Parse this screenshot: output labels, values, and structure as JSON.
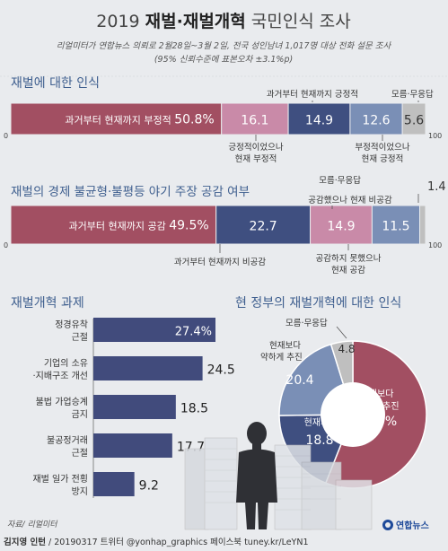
{
  "header": {
    "title_prefix": "2019",
    "title_bold": "재벌·재벌개혁",
    "title_suffix": "국민인식 조사",
    "subtitle1": "리얼미터가 연합뉴스 의뢰로 2월28일~3월 2일, 전국 성인남녀 1,017명 대상 전화 설문 조사",
    "subtitle2": "(95% 신뢰수준에 표본오차 ±3.1%p)"
  },
  "colors": {
    "maroon": "#a24f62",
    "pink": "#c98aa8",
    "navy": "#3f4f80",
    "steel": "#7a8fb6",
    "grey": "#bfbfbf",
    "bar_navy": "#414b7c",
    "accent_heading": "#3f5f8f"
  },
  "chart_data": [
    {
      "type": "bar",
      "title": "재벌에 대한 인식",
      "axis_min": "0",
      "axis_max": "100",
      "segments": [
        {
          "label": "과거부터 현재까지 부정적",
          "value": 50.8,
          "value_text": "50.8%",
          "color": "#a24f62"
        },
        {
          "label": "긍정적이었으나 현재 부정적",
          "value": 16.1,
          "value_text": "16.1",
          "color": "#c98aa8"
        },
        {
          "label": "과거부터 현재까지 긍정적",
          "value": 14.9,
          "value_text": "14.9",
          "color": "#3f4f80"
        },
        {
          "label": "부정적이었으나 현재 긍정적",
          "value": 12.6,
          "value_text": "12.6",
          "color": "#7a8fb6"
        },
        {
          "label": "모름·무응답",
          "value": 5.6,
          "value_text": "5.6",
          "color": "#bfbfbf"
        }
      ]
    },
    {
      "type": "bar",
      "title": "재벌의 경제 불균형·불평등 야기 주장 공감 여부",
      "axis_min": "0",
      "axis_max": "100",
      "segments": [
        {
          "label": "과거부터 현재까지 공감",
          "value": 49.5,
          "value_text": "49.5%",
          "color": "#a24f62"
        },
        {
          "label": "과거부터 현재까지 비공감",
          "value": 22.7,
          "value_text": "22.7",
          "color": "#3f4f80"
        },
        {
          "label": "공감하지 못했으나 현재 공감",
          "value": 14.9,
          "value_text": "14.9",
          "color": "#c98aa8"
        },
        {
          "label": "공감했으나 현재 비공감",
          "value": 11.5,
          "value_text": "11.5",
          "color": "#7a8fb6"
        },
        {
          "label": "모름·무응답",
          "value": 1.4,
          "value_text": "1.4",
          "color": "#bfbfbf"
        }
      ]
    },
    {
      "type": "bar",
      "title": "재벌개혁 과제",
      "categories": [
        "정경유착 근절",
        "기업의 소유 ·지배구조 개선",
        "불법 가업승계 금지",
        "불공정거래 근절",
        "재벌 일가 전횡 방지"
      ],
      "values": [
        27.4,
        24.5,
        18.5,
        17.7,
        9.2
      ],
      "value_texts": [
        "27.4%",
        "24.5",
        "18.5",
        "17.7",
        "9.2"
      ]
    },
    {
      "type": "pie",
      "title": "현 정부의 재벌개혁에 대한 인식",
      "slices": [
        {
          "label": "현재보다 강하게 추진",
          "value": 56.0,
          "value_text": "56.0%",
          "color": "#a24f62"
        },
        {
          "label": "현재처럼",
          "value": 18.8,
          "value_text": "18.8",
          "color": "#3f4f80"
        },
        {
          "label": "현재보다 약하게 추진",
          "value": 20.4,
          "value_text": "20.4",
          "color": "#7a8fb6"
        },
        {
          "label": "모름·무응답",
          "value": 4.8,
          "value_text": "4.8",
          "color": "#bfbfbf"
        }
      ]
    }
  ],
  "footer": {
    "source": "자료/ 리얼미터",
    "credit_bold": "김지영 인턴",
    "credit_rest": " / 20190317  트위터 @yonhap_graphics  페이스북 tuney.kr/LeYN1",
    "logo_text": "연합뉴스"
  }
}
